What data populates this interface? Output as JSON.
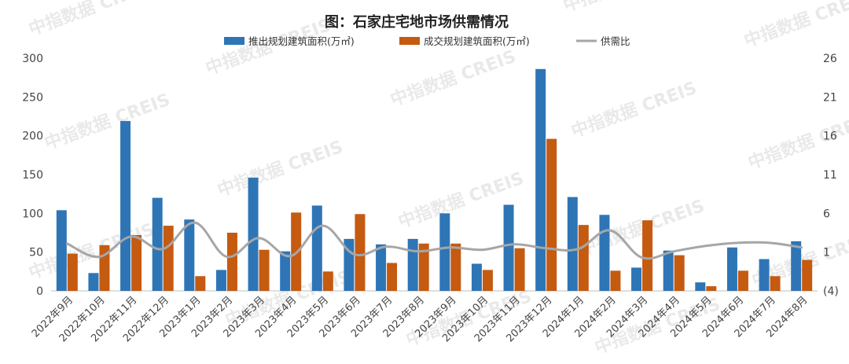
{
  "chart_data": {
    "type": "bar",
    "title": "图：石家庄宅地市场供需情况",
    "categories": [
      "2022年9月",
      "2022年10月",
      "2022年11月",
      "2022年12月",
      "2023年1月",
      "2023年2月",
      "2023年3月",
      "2023年4月",
      "2023年5月",
      "2023年6月",
      "2023年7月",
      "2023年8月",
      "2023年9月",
      "2023年10月",
      "2023年11月",
      "2023年12月",
      "2024年1月",
      "2024年2月",
      "2024年3月",
      "2024年4月",
      "2024年5月",
      "2024年6月",
      "2024年7月",
      "2024年8月"
    ],
    "series": [
      {
        "name": "推出规划建筑面积(万㎡)",
        "type": "bar",
        "axis": "left",
        "color": "#2e75b6",
        "values": [
          104,
          23,
          219,
          120,
          92,
          27,
          146,
          51,
          110,
          67,
          60,
          67,
          100,
          35,
          111,
          286,
          121,
          98,
          30,
          52,
          11,
          56,
          41,
          64
        ]
      },
      {
        "name": "成交规划建筑面积(万㎡)",
        "type": "bar",
        "axis": "left",
        "color": "#c55a11",
        "values": [
          48,
          59,
          72,
          84,
          19,
          75,
          53,
          101,
          25,
          99,
          36,
          61,
          61,
          27,
          55,
          196,
          85,
          26,
          91,
          46,
          6,
          26,
          19,
          40
        ]
      },
      {
        "name": "供需比",
        "type": "line",
        "axis": "right",
        "color": "#a6a6a6",
        "values": [
          2.1,
          0.4,
          3.0,
          1.4,
          4.8,
          0.4,
          2.8,
          0.5,
          4.4,
          0.7,
          1.7,
          1.1,
          1.6,
          1.3,
          2.0,
          1.5,
          1.4,
          3.8,
          0.3,
          1.1,
          1.8,
          2.2,
          2.2,
          1.6
        ]
      }
    ],
    "y_left": {
      "min": 0,
      "max": 300,
      "ticks": [
        "0",
        "50",
        "100",
        "150",
        "200",
        "250",
        "300"
      ]
    },
    "y_right": {
      "min": -4,
      "max": 26,
      "ticks": [
        "(4)",
        "1",
        "6",
        "11",
        "16",
        "21",
        "26"
      ],
      "negative_tick_color": "#e03c31"
    },
    "legend_position": "top",
    "grid": false
  },
  "watermark": "中指数据 CREIS"
}
